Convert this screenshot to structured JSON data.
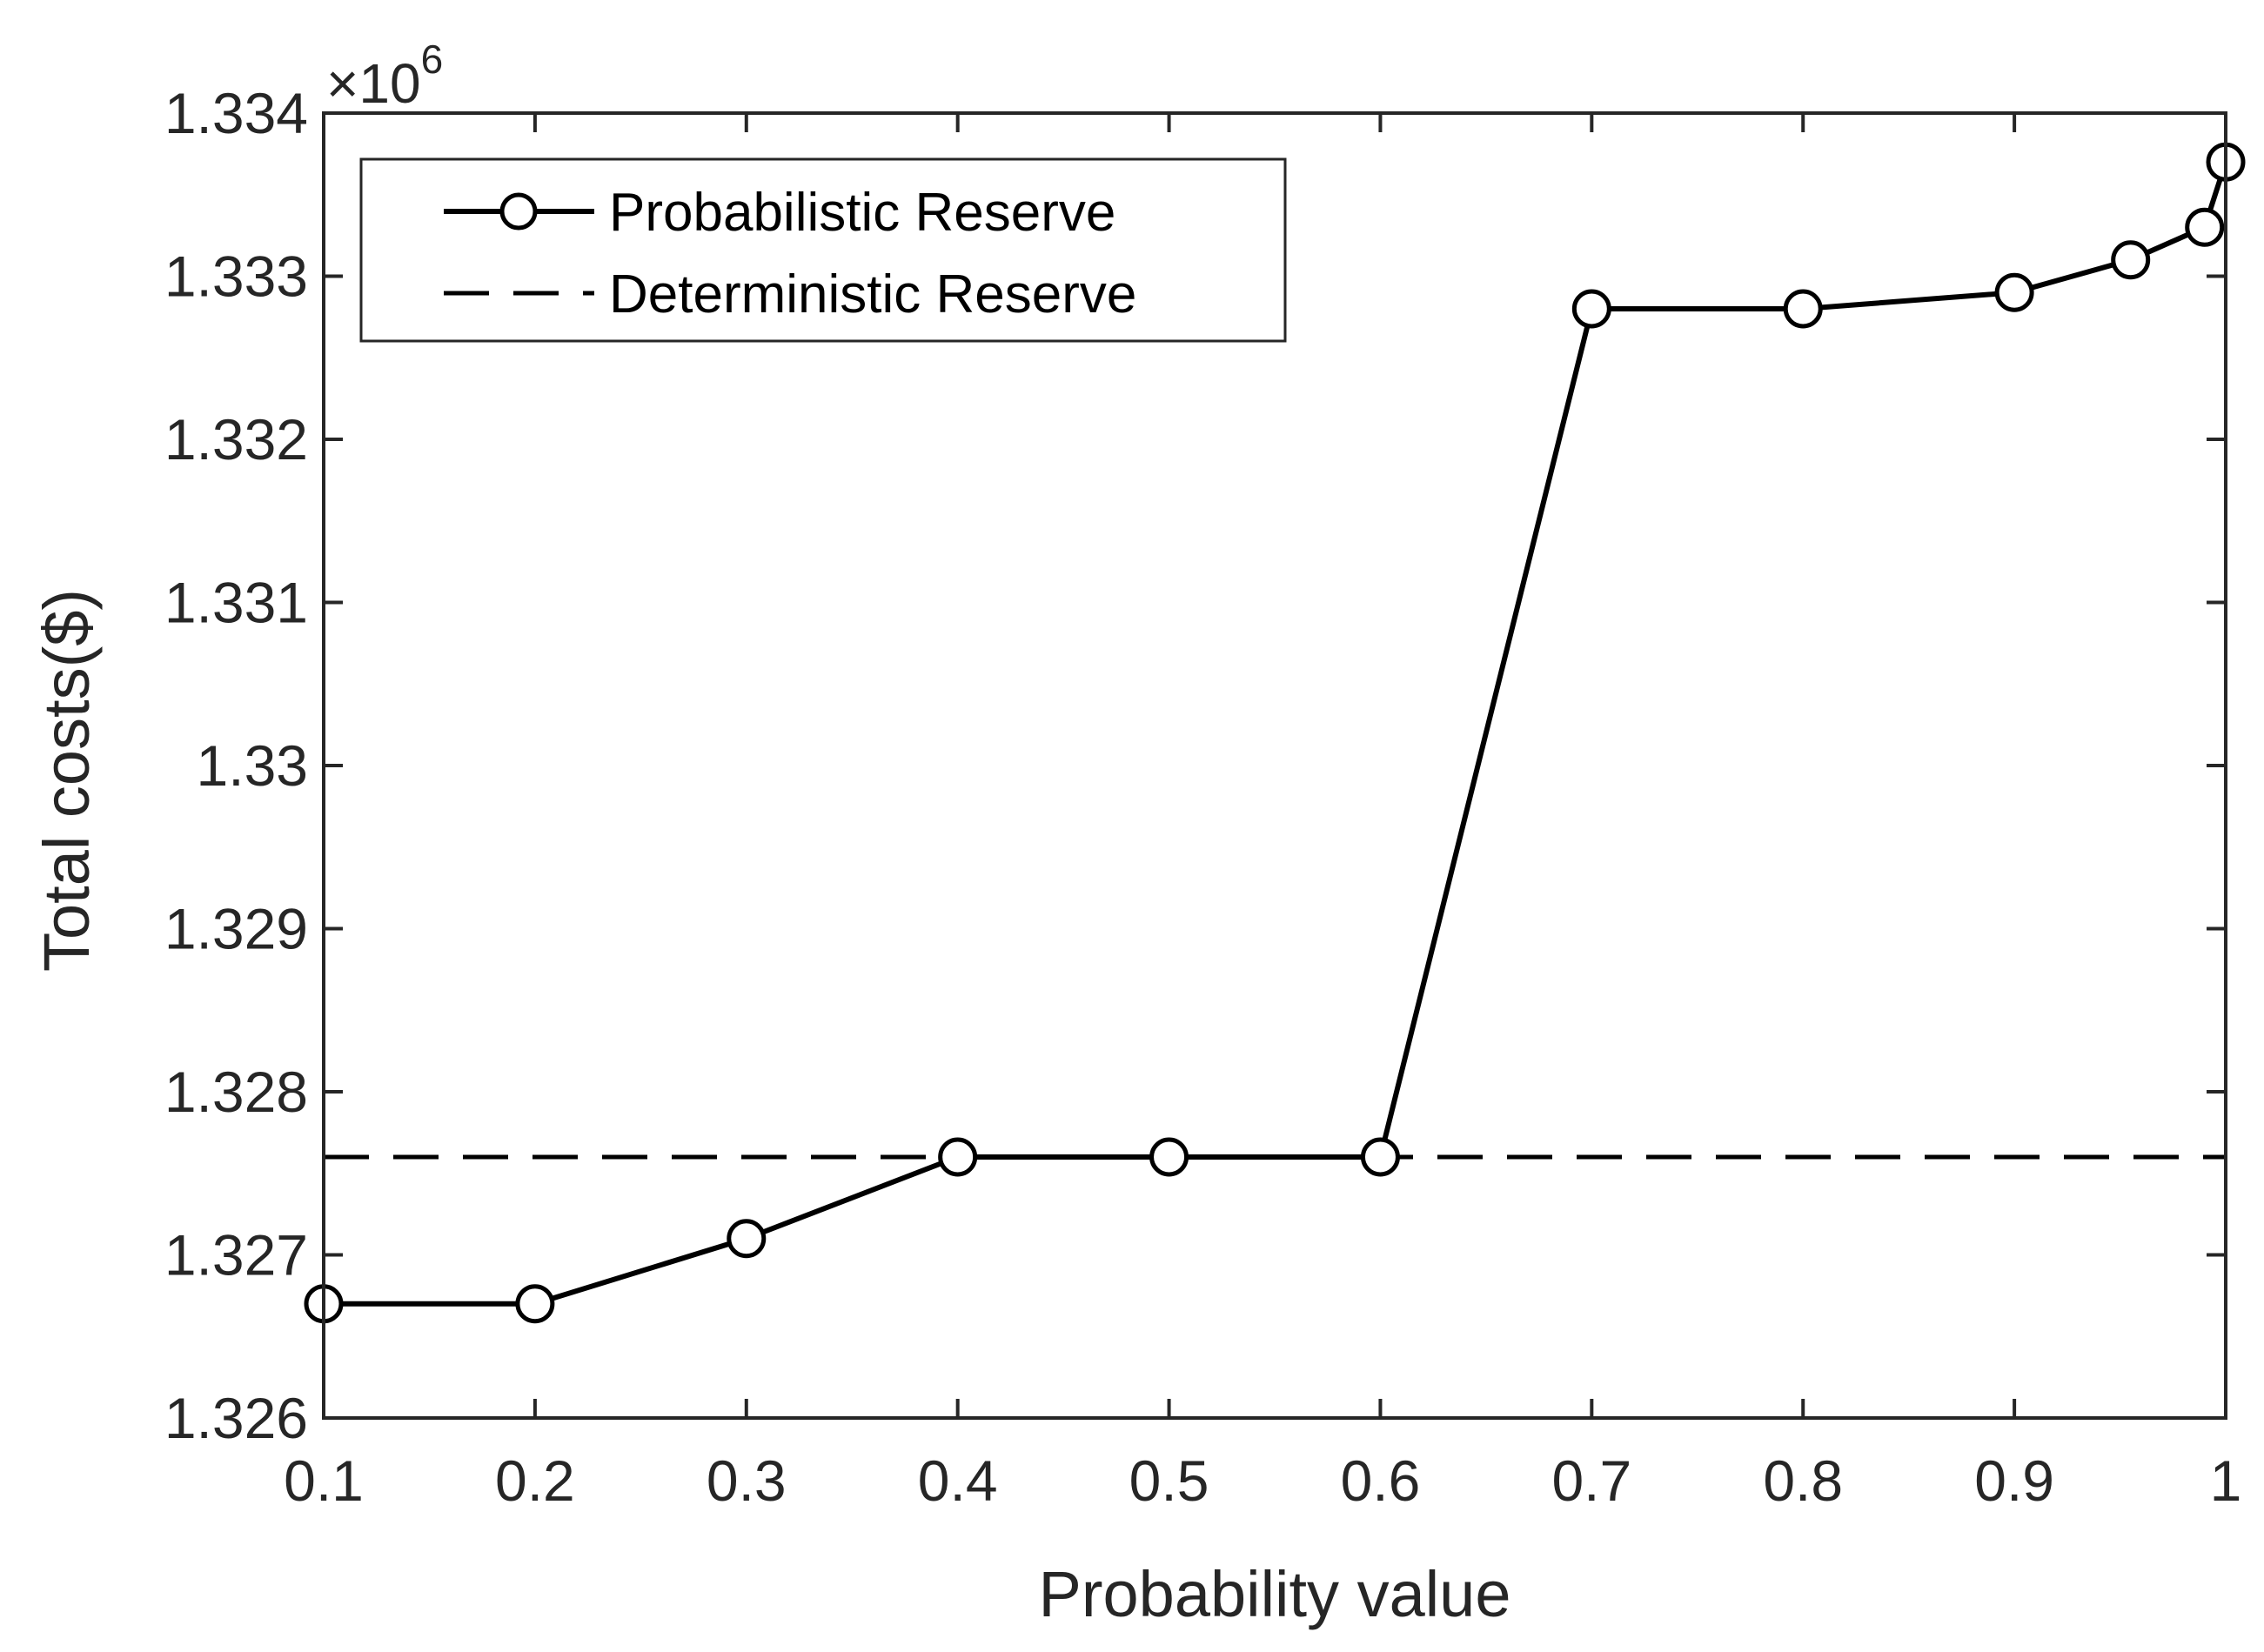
{
  "chart_data": {
    "type": "line",
    "title": "",
    "xlabel": "Probability value",
    "ylabel": "Total costs($)",
    "xlim": [
      0.1,
      1
    ],
    "ylim": [
      1.326,
      1.334
    ],
    "y_scale_exponent_label": {
      "times": "×10",
      "power": "6"
    },
    "xticks": [
      0.1,
      0.2,
      0.3,
      0.4,
      0.5,
      0.6,
      0.7,
      0.8,
      0.9,
      1
    ],
    "xtick_labels": [
      "0.1",
      "0.2",
      "0.3",
      "0.4",
      "0.5",
      "0.6",
      "0.7",
      "0.8",
      "0.9",
      "1"
    ],
    "yticks": [
      1.326,
      1.327,
      1.328,
      1.329,
      1.33,
      1.331,
      1.332,
      1.333,
      1.334
    ],
    "ytick_labels": [
      "1.326",
      "1.327",
      "1.328",
      "1.329",
      "1.33",
      "1.331",
      "1.332",
      "1.333",
      "1.334"
    ],
    "grid": false,
    "legend_position": "top-left",
    "series": [
      {
        "name": "Probabilistic Reserve",
        "style": "solid-circle-markers",
        "color": "#000000",
        "x": [
          0.1,
          0.2,
          0.3,
          0.4,
          0.5,
          0.6,
          0.7,
          0.8,
          0.9,
          0.955,
          0.99,
          1.0
        ],
        "y": [
          1.3267,
          1.3267,
          1.3271,
          1.3276,
          1.3276,
          1.3276,
          1.3328,
          1.3328,
          1.3329,
          1.3331,
          1.3333,
          1.3337
        ]
      },
      {
        "name": "Deterministic Reserve",
        "style": "dashed",
        "color": "#000000",
        "y_constant": 1.3276
      }
    ]
  }
}
